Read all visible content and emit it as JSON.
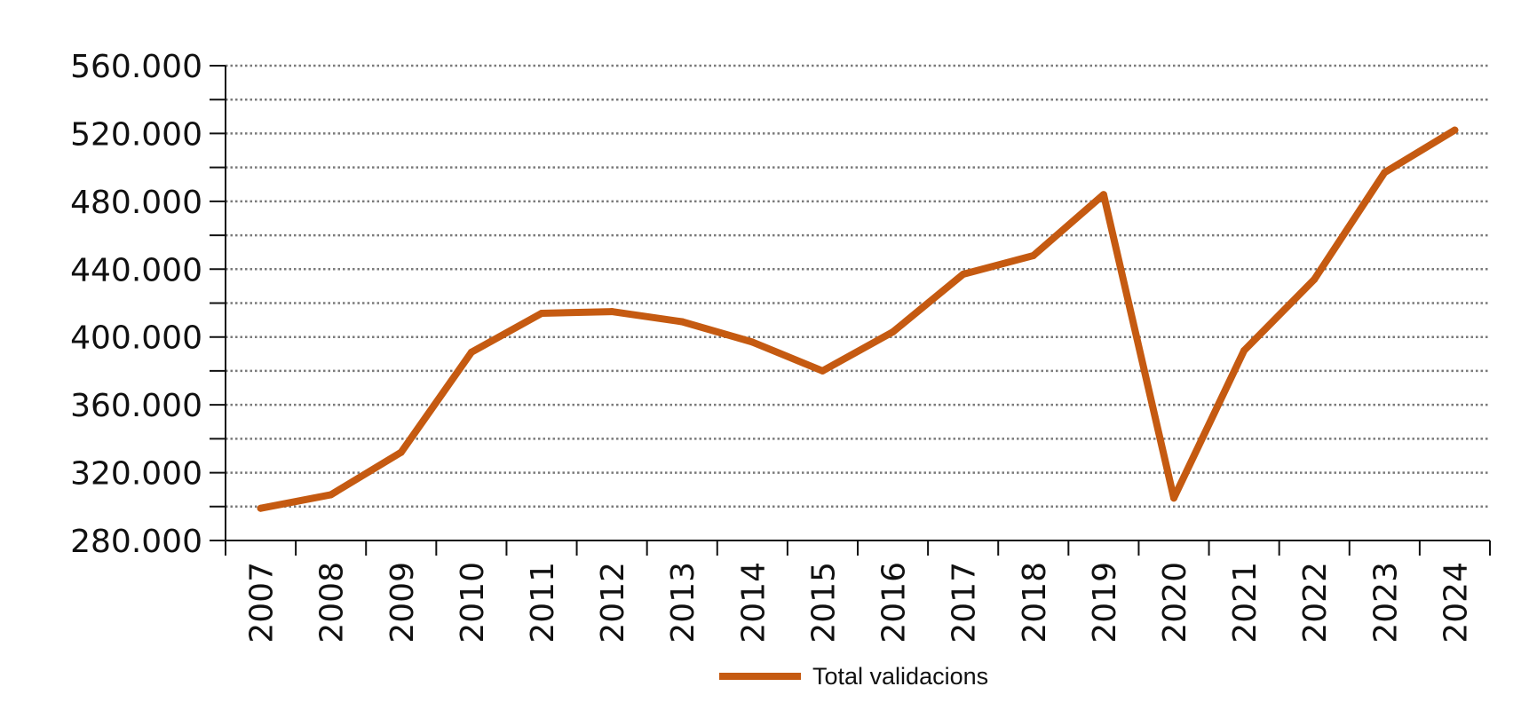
{
  "chart_data": {
    "type": "line",
    "title": "",
    "xlabel": "",
    "ylabel": "",
    "categories": [
      "2007",
      "2008",
      "2009",
      "2010",
      "2011",
      "2012",
      "2013",
      "2014",
      "2015",
      "2016",
      "2017",
      "2018",
      "2019",
      "2020",
      "2021",
      "2022",
      "2023",
      "2024"
    ],
    "series": [
      {
        "name": "Total validacions",
        "color": "#C55A11",
        "values": [
          299000,
          307000,
          332000,
          391000,
          414000,
          415000,
          409000,
          397000,
          380000,
          403000,
          437000,
          448000,
          484000,
          305000,
          392000,
          434000,
          497000,
          522000
        ]
      }
    ],
    "ylim": [
      280000,
      560000
    ],
    "y_ticks": [
      {
        "value": 280000,
        "label": "280.000"
      },
      {
        "value": 320000,
        "label": "320.000"
      },
      {
        "value": 360000,
        "label": "360.000"
      },
      {
        "value": 400000,
        "label": "400.000"
      },
      {
        "value": 440000,
        "label": "440.000"
      },
      {
        "value": 480000,
        "label": "480.000"
      },
      {
        "value": 520000,
        "label": "520.000"
      },
      {
        "value": 560000,
        "label": "560.000"
      }
    ],
    "y_minor_step": 20000,
    "grid": true,
    "grid_style": "dotted",
    "legend_position": "bottom-center"
  }
}
